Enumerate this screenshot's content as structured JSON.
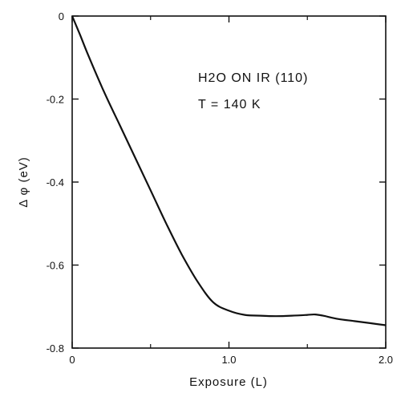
{
  "chart_data": {
    "type": "line",
    "title": "",
    "xlabel": "Exposure (L)",
    "ylabel": "Δ φ (eV)",
    "xlim": [
      0,
      2.0
    ],
    "ylim": [
      -0.8,
      0
    ],
    "x_ticks": [
      0,
      1.0,
      2.0
    ],
    "x_tick_labels": [
      "0",
      "1.0",
      "2.0"
    ],
    "y_ticks": [
      0,
      -0.2,
      -0.4,
      -0.6,
      -0.8
    ],
    "y_tick_labels": [
      "0",
      "-0.2",
      "-0.4",
      "-0.6",
      "-0.8"
    ],
    "grid": false,
    "annotations": [
      "H2O ON IR (110)",
      "T = 140 K"
    ],
    "series": [
      {
        "x": [
          0,
          0.05,
          0.1,
          0.2,
          0.3,
          0.4,
          0.5,
          0.6,
          0.7,
          0.8,
          0.9,
          1.0,
          1.1,
          1.2,
          1.3,
          1.4,
          1.5,
          1.55,
          1.6,
          1.7,
          1.8,
          1.9,
          2.0
        ],
        "y": [
          0,
          -0.045,
          -0.092,
          -0.18,
          -0.26,
          -0.34,
          -0.42,
          -0.5,
          -0.575,
          -0.64,
          -0.69,
          -0.71,
          -0.72,
          -0.722,
          -0.723,
          -0.722,
          -0.72,
          -0.719,
          -0.722,
          -0.73,
          -0.735,
          -0.74,
          -0.745
        ]
      }
    ]
  }
}
